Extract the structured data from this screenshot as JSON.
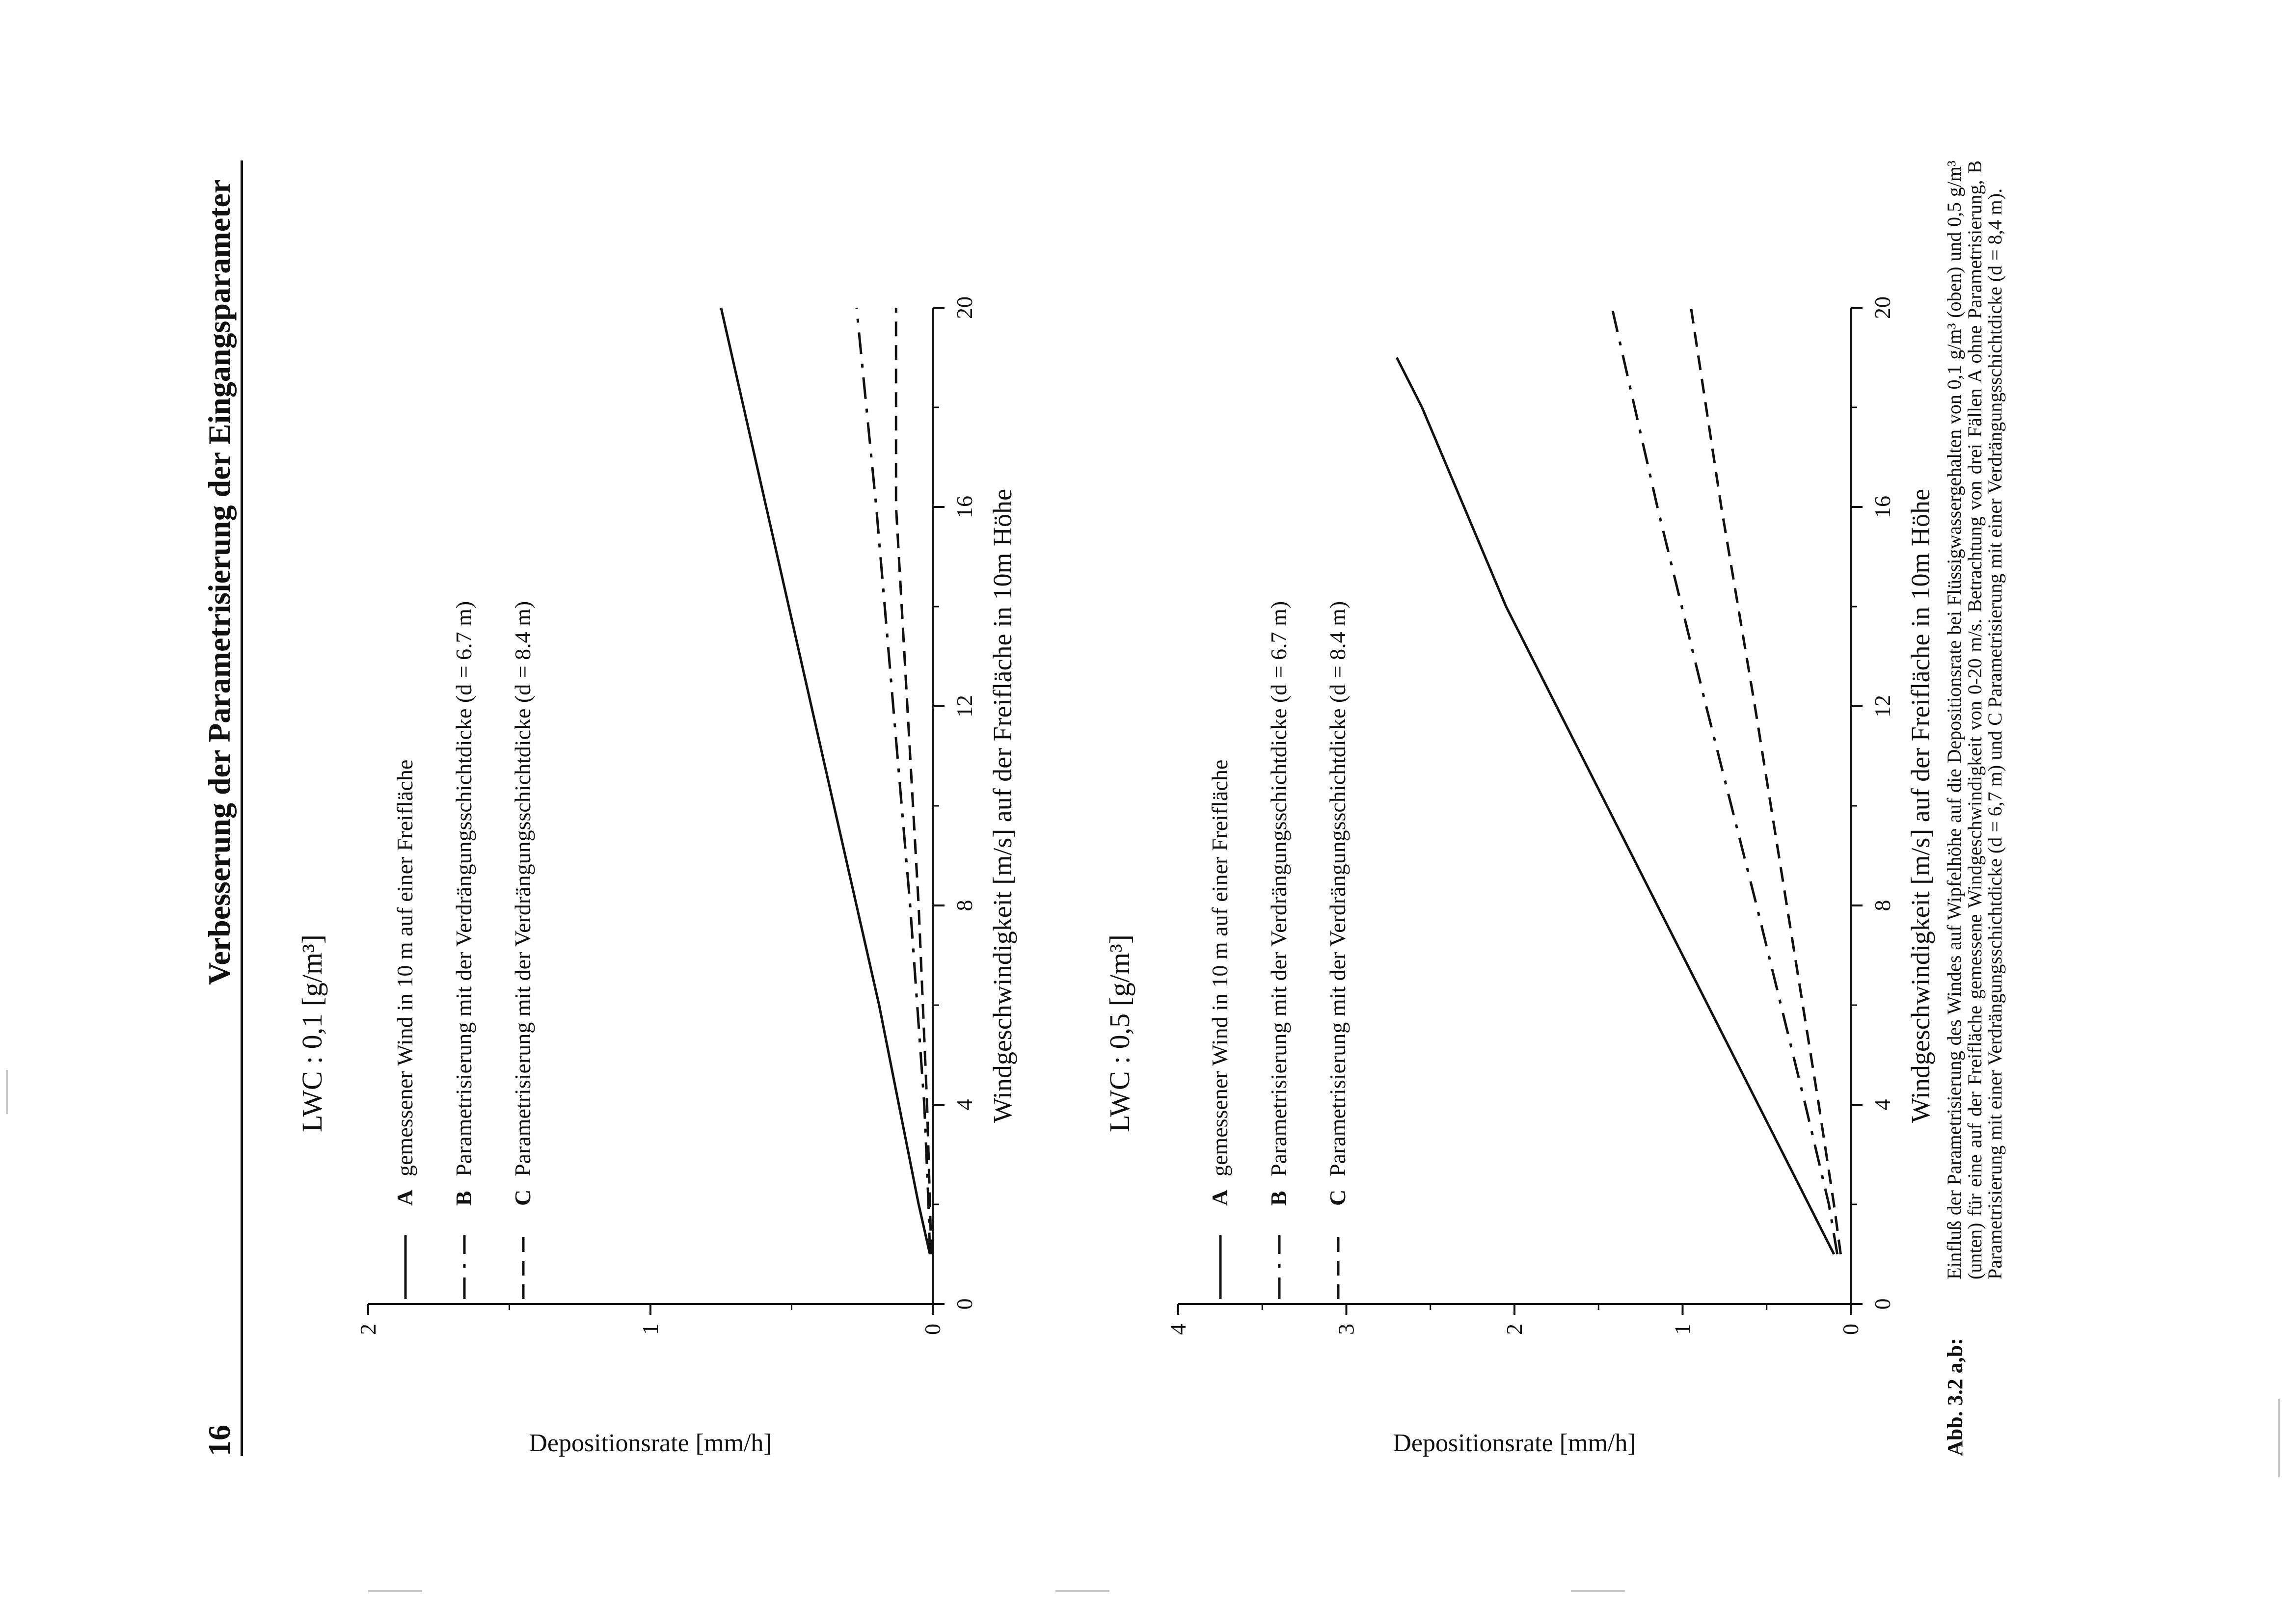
{
  "page": {
    "page_number": "16",
    "running_title": "Verbesserung der Parametrisierung der Eingangsparameter"
  },
  "chart_data": [
    {
      "type": "line",
      "title": "LWC : 0,1 [g/m³]",
      "xlabel": "Windgeschwindigkeit [m/s] auf der Freifläche in 10m Höhe",
      "ylabel": "Depositionsrate [mm/h]",
      "xlim": [
        0,
        20
      ],
      "ylim": [
        0,
        2
      ],
      "xticks": [
        0,
        4,
        8,
        12,
        16,
        20
      ],
      "yticks": [
        0,
        1,
        2
      ],
      "legend_position": "top-left",
      "series": [
        {
          "letter": "A",
          "name": "gemessener Wind in 10 m auf einer Freifläche",
          "style": "solid",
          "x": [
            1,
            2,
            4,
            6,
            8,
            10,
            12,
            14,
            16,
            18,
            20
          ],
          "y": [
            0.01,
            0.05,
            0.12,
            0.19,
            0.27,
            0.35,
            0.43,
            0.51,
            0.59,
            0.67,
            0.75
          ]
        },
        {
          "letter": "B",
          "name": "Parametrisierung mit der Verdrängungsschichtdicke (d = 6.7 m)",
          "style": "dashdot",
          "x": [
            1,
            2,
            4,
            8,
            12,
            16,
            20
          ],
          "y": [
            0.01,
            0.015,
            0.03,
            0.08,
            0.14,
            0.2,
            0.27
          ]
        },
        {
          "letter": "C",
          "name": "Parametrisierung mit der Verdrängungsschichtdicke (d = 8.4 m)",
          "style": "dashed",
          "x": [
            1,
            2,
            4,
            8,
            12,
            16,
            20
          ],
          "y": [
            0.005,
            0.01,
            0.02,
            0.05,
            0.09,
            0.13,
            0.13
          ]
        }
      ]
    },
    {
      "type": "line",
      "title": "LWC : 0,5 [g/m³]",
      "xlabel": "Windgeschwindigkeit [m/s] auf der Freifläche in 10m Höhe",
      "ylabel": "Depositionsrate [mm/h]",
      "xlim": [
        0,
        20
      ],
      "ylim": [
        0,
        4
      ],
      "xticks": [
        0,
        4,
        8,
        12,
        16,
        20
      ],
      "yticks": [
        0,
        1,
        2,
        3,
        4
      ],
      "legend_position": "top-left",
      "series": [
        {
          "letter": "A",
          "name": "gemessener Wind in 10 m auf einer Freifläche",
          "style": "solid",
          "x": [
            1,
            2,
            4,
            6,
            8,
            10,
            12,
            14,
            16,
            18,
            19
          ],
          "y": [
            0.1,
            0.25,
            0.55,
            0.85,
            1.15,
            1.45,
            1.75,
            2.05,
            2.3,
            2.55,
            2.7
          ]
        },
        {
          "letter": "B",
          "name": "Parametrisierung mit der Verdrängungsschichtdicke (d = 6.7 m)",
          "style": "dashdot",
          "x": [
            1,
            2,
            4,
            8,
            12,
            16,
            20
          ],
          "y": [
            0.08,
            0.13,
            0.27,
            0.56,
            0.86,
            1.15,
            1.42
          ]
        },
        {
          "letter": "C",
          "name": "Parametrisierung mit der Verdrängungsschichtdicke (d = 8.4 m)",
          "style": "dashed",
          "x": [
            1,
            2,
            4,
            8,
            12,
            16,
            20
          ],
          "y": [
            0.06,
            0.1,
            0.19,
            0.38,
            0.57,
            0.77,
            0.95
          ]
        }
      ]
    }
  ],
  "caption": {
    "label": "Abb. 3.2 a,b:",
    "text": "Einfluß der Parametrisierung des Windes auf Wipfelhöhe auf die Depositionsrate bei Flüssigwassergehalten von 0,1 g/m³ (oben) und 0,5 g/m³ (unten) für eine auf der Freifläche gemessene Windgeschwindigkeit von 0-20 m/s. Betrachtung von drei Fällen A ohne Parametrisierung, B Parametrisierung mit einer Verdrängungsschichtdicke (d = 6,7 m) und C Parametrisierung mit einer Verdrängungsschichtdicke (d = 8,4 m)."
  }
}
